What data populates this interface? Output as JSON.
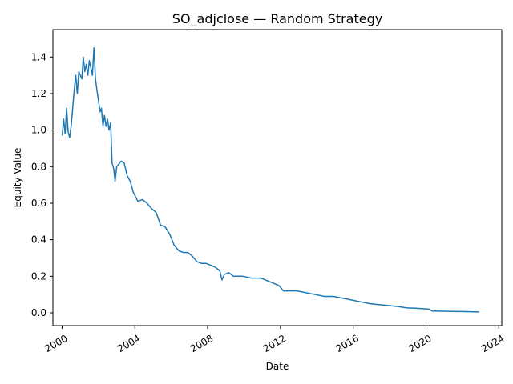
{
  "chart_data": {
    "type": "line",
    "title": "SO_adjclose — Random Strategy",
    "xlabel": "Date",
    "ylabel": "Equity Value",
    "grid": false,
    "legend": "none",
    "line_color": "#1f77b4",
    "xlim": [
      "1999-07-01",
      "2024-03-01"
    ],
    "ylim": [
      -0.07,
      1.55
    ],
    "xticks": [
      {
        "label": "2000",
        "date": "2000-01-01"
      },
      {
        "label": "2004",
        "date": "2004-01-01"
      },
      {
        "label": "2008",
        "date": "2008-01-01"
      },
      {
        "label": "2012",
        "date": "2012-01-01"
      },
      {
        "label": "2016",
        "date": "2016-01-01"
      },
      {
        "label": "2020",
        "date": "2020-01-01"
      },
      {
        "label": "2024",
        "date": "2024-01-01"
      }
    ],
    "yticks": [
      0.0,
      0.2,
      0.4,
      0.6,
      0.8,
      1.0,
      1.2,
      1.4
    ],
    "ytick_labels": [
      "0.0",
      "0.2",
      "0.4",
      "0.6",
      "0.8",
      "1.0",
      "1.2",
      "1.4"
    ],
    "series": [
      {
        "points": [
          [
            "2000-01-03",
            0.97
          ],
          [
            "2000-02-01",
            1.06
          ],
          [
            "2000-03-01",
            0.98
          ],
          [
            "2000-04-01",
            1.12
          ],
          [
            "2000-05-01",
            0.99
          ],
          [
            "2000-06-01",
            0.96
          ],
          [
            "2000-07-01",
            1.02
          ],
          [
            "2000-08-01",
            1.12
          ],
          [
            "2000-09-01",
            1.22
          ],
          [
            "2000-10-01",
            1.3
          ],
          [
            "2000-11-01",
            1.2
          ],
          [
            "2000-12-01",
            1.32
          ],
          [
            "2001-01-01",
            1.3
          ],
          [
            "2001-02-01",
            1.28
          ],
          [
            "2001-03-01",
            1.4
          ],
          [
            "2001-04-01",
            1.32
          ],
          [
            "2001-05-01",
            1.36
          ],
          [
            "2001-06-01",
            1.3
          ],
          [
            "2001-07-01",
            1.38
          ],
          [
            "2001-08-01",
            1.34
          ],
          [
            "2001-09-01",
            1.3
          ],
          [
            "2001-10-01",
            1.45
          ],
          [
            "2001-11-01",
            1.28
          ],
          [
            "2001-12-01",
            1.22
          ],
          [
            "2002-01-01",
            1.16
          ],
          [
            "2002-02-01",
            1.1
          ],
          [
            "2002-03-01",
            1.12
          ],
          [
            "2002-04-01",
            1.02
          ],
          [
            "2002-05-01",
            1.08
          ],
          [
            "2002-06-01",
            1.02
          ],
          [
            "2002-07-01",
            1.06
          ],
          [
            "2002-08-01",
            1.0
          ],
          [
            "2002-09-01",
            1.04
          ],
          [
            "2002-10-01",
            0.82
          ],
          [
            "2002-11-01",
            0.79
          ],
          [
            "2002-12-01",
            0.72
          ],
          [
            "2003-01-01",
            0.8
          ],
          [
            "2003-02-01",
            0.81
          ],
          [
            "2003-04-01",
            0.83
          ],
          [
            "2003-06-01",
            0.82
          ],
          [
            "2003-08-01",
            0.75
          ],
          [
            "2003-10-01",
            0.72
          ],
          [
            "2003-12-01",
            0.66
          ],
          [
            "2004-03-01",
            0.61
          ],
          [
            "2004-06-01",
            0.62
          ],
          [
            "2004-09-01",
            0.6
          ],
          [
            "2004-12-01",
            0.57
          ],
          [
            "2005-03-01",
            0.55
          ],
          [
            "2005-06-01",
            0.48
          ],
          [
            "2005-09-01",
            0.47
          ],
          [
            "2005-12-01",
            0.43
          ],
          [
            "2006-03-01",
            0.37
          ],
          [
            "2006-06-01",
            0.34
          ],
          [
            "2006-09-01",
            0.33
          ],
          [
            "2006-12-01",
            0.33
          ],
          [
            "2007-03-01",
            0.31
          ],
          [
            "2007-06-01",
            0.28
          ],
          [
            "2007-09-01",
            0.27
          ],
          [
            "2007-12-01",
            0.27
          ],
          [
            "2008-03-01",
            0.26
          ],
          [
            "2008-06-01",
            0.25
          ],
          [
            "2008-09-01",
            0.23
          ],
          [
            "2008-10-15",
            0.18
          ],
          [
            "2008-12-01",
            0.21
          ],
          [
            "2009-03-01",
            0.22
          ],
          [
            "2009-06-01",
            0.2
          ],
          [
            "2009-09-01",
            0.2
          ],
          [
            "2009-12-01",
            0.2
          ],
          [
            "2010-06-01",
            0.19
          ],
          [
            "2010-12-01",
            0.19
          ],
          [
            "2011-06-01",
            0.17
          ],
          [
            "2011-12-01",
            0.15
          ],
          [
            "2012-03-01",
            0.12
          ],
          [
            "2012-06-01",
            0.12
          ],
          [
            "2012-12-01",
            0.12
          ],
          [
            "2013-06-01",
            0.11
          ],
          [
            "2013-12-01",
            0.1
          ],
          [
            "2014-06-01",
            0.09
          ],
          [
            "2014-12-01",
            0.09
          ],
          [
            "2015-06-01",
            0.08
          ],
          [
            "2015-12-01",
            0.07
          ],
          [
            "2016-06-01",
            0.06
          ],
          [
            "2016-12-01",
            0.05
          ],
          [
            "2017-06-01",
            0.045
          ],
          [
            "2017-12-01",
            0.04
          ],
          [
            "2018-06-01",
            0.035
          ],
          [
            "2018-12-01",
            0.027
          ],
          [
            "2019-06-01",
            0.025
          ],
          [
            "2019-12-01",
            0.022
          ],
          [
            "2020-03-01",
            0.02
          ],
          [
            "2020-05-01",
            0.01
          ],
          [
            "2020-12-01",
            0.009
          ],
          [
            "2021-06-01",
            0.008
          ],
          [
            "2021-12-01",
            0.007
          ],
          [
            "2022-06-01",
            0.006
          ],
          [
            "2022-12-01",
            0.005
          ]
        ]
      }
    ]
  }
}
